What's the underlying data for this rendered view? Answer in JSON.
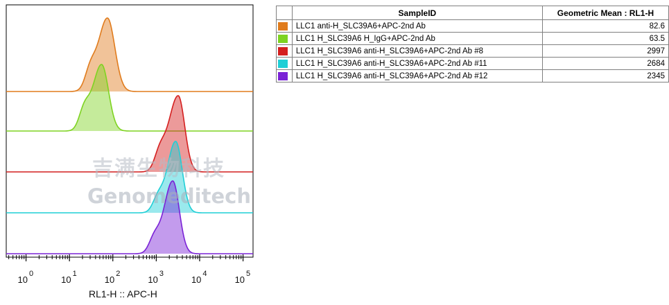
{
  "chart_data": {
    "type": "histogram",
    "xlabel": "RL1-H :: APC-H",
    "xscale": "log",
    "xlim": [
      0.35,
      170000
    ],
    "xticks": [
      {
        "base": "10",
        "exp": "0",
        "value": 1
      },
      {
        "base": "10",
        "exp": "1",
        "value": 10
      },
      {
        "base": "10",
        "exp": "2",
        "value": 100
      },
      {
        "base": "10",
        "exp": "3",
        "value": 1000
      },
      {
        "base": "10",
        "exp": "4",
        "value": 10000
      },
      {
        "base": "10",
        "exp": "5",
        "value": 100000
      }
    ],
    "layout": "offset-overlay",
    "series": [
      {
        "name": "LLC1 anti-H_SLC39A6+APC-2nd Ab",
        "color": "#e07b1c",
        "geo_mean": "82.6",
        "peak": 75,
        "left_sigma": 0.21,
        "right_sigma": 0.17,
        "shoulder": {
          "x": 30,
          "height": 0.25
        }
      },
      {
        "name": "LLC1 H_SLC39A6 H_IgG+APC-2nd Ab",
        "color": "#7ed321",
        "geo_mean": "63.5",
        "peak": 55,
        "left_sigma": 0.2,
        "right_sigma": 0.16,
        "shoulder": {
          "x": 22,
          "height": 0.3
        }
      },
      {
        "name": "LLC1 H_SLC39A6 anti-H_SLC39A6+APC-2nd Ab #8",
        "color": "#d41f1f",
        "geo_mean": "2997",
        "peak": 3200,
        "left_sigma": 0.22,
        "right_sigma": 0.15,
        "shoulder": {
          "x": 1200,
          "height": 0.22
        }
      },
      {
        "name": "LLC1 H_SLC39A6 anti-H_SLC39A6+APC-2nd Ab #11",
        "color": "#1fcfd6",
        "geo_mean": "2684",
        "peak": 2800,
        "left_sigma": 0.19,
        "right_sigma": 0.15,
        "shoulder": {
          "x": 1100,
          "height": 0.2
        }
      },
      {
        "name": "LLC1 H_SLC39A6 anti-H_SLC39A6+APC-2nd Ab #12",
        "color": "#7a22d6",
        "geo_mean": "2345",
        "peak": 2400,
        "left_sigma": 0.2,
        "right_sigma": 0.15,
        "shoulder": {
          "x": 900,
          "height": 0.2
        }
      }
    ]
  },
  "legend_table": {
    "header_sample": "SampleID",
    "header_value": "Geometric Mean : RL1-H"
  },
  "watermark": {
    "chinese": "吉满生物科技",
    "english": "Genomeditech"
  }
}
